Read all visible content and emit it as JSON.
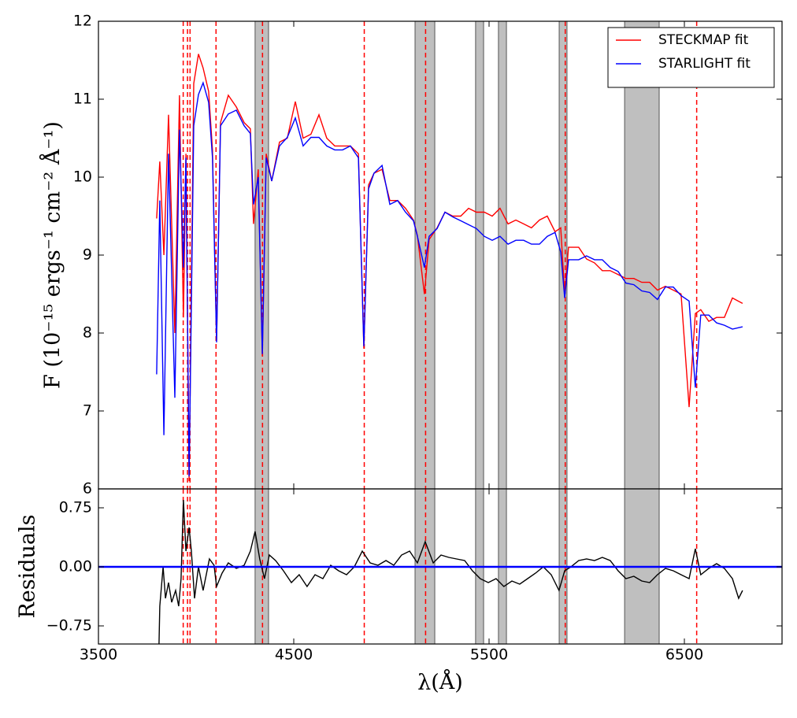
{
  "chart_data": [
    {
      "type": "line",
      "ylabel": "F (10⁻¹⁵ ergs⁻¹ cm⁻² Å⁻¹)",
      "xlim": [
        3500,
        7000
      ],
      "xticks": [
        3500,
        4500,
        5500,
        6500
      ],
      "ylim": [
        6,
        12
      ],
      "yticks": [
        6,
        7,
        8,
        9,
        10,
        11,
        12
      ],
      "legend": "upper right",
      "x": [
        3798,
        3814,
        3835,
        3859,
        3891,
        3915,
        3935,
        3948,
        3964,
        3988,
        4012,
        4036,
        4064,
        4084,
        4105,
        4125,
        4165,
        4206,
        4246,
        4278,
        4294,
        4318,
        4339,
        4359,
        4387,
        4427,
        4467,
        4508,
        4548,
        4588,
        4629,
        4669,
        4710,
        4750,
        4790,
        4831,
        4859,
        4883,
        4911,
        4952,
        4992,
        5032,
        5072,
        5113,
        5133,
        5169,
        5193,
        5234,
        5274,
        5314,
        5355,
        5395,
        5435,
        5476,
        5516,
        5556,
        5597,
        5637,
        5677,
        5717,
        5758,
        5798,
        5838,
        5867,
        5887,
        5907,
        5959,
        5999,
        6040,
        6080,
        6120,
        6161,
        6201,
        6241,
        6282,
        6322,
        6362,
        6403,
        6443,
        6483,
        6524,
        6556,
        6584,
        6625,
        6665,
        6705,
        6746,
        6798
      ],
      "series": [
        {
          "name": "STECKMAP fit",
          "color": "#ff0000",
          "values": [
            9.47,
            10.2,
            9.0,
            10.8,
            8.0,
            11.05,
            8.2,
            10.3,
            6.1,
            11.2,
            11.58,
            11.4,
            11.1,
            10.35,
            7.9,
            10.7,
            11.05,
            10.9,
            10.7,
            10.62,
            9.4,
            10.1,
            7.7,
            10.3,
            9.95,
            10.45,
            10.5,
            10.97,
            10.5,
            10.55,
            10.8,
            10.5,
            10.4,
            10.4,
            10.4,
            10.3,
            7.8,
            9.9,
            10.05,
            10.1,
            9.7,
            9.7,
            9.6,
            9.45,
            9.25,
            8.5,
            9.2,
            9.35,
            9.55,
            9.5,
            9.5,
            9.6,
            9.55,
            9.55,
            9.5,
            9.6,
            9.4,
            9.45,
            9.4,
            9.35,
            9.45,
            9.5,
            9.3,
            9.35,
            8.5,
            9.1,
            9.1,
            8.95,
            8.9,
            8.8,
            8.8,
            8.75,
            8.7,
            8.7,
            8.65,
            8.65,
            8.55,
            8.6,
            8.55,
            8.5,
            7.05,
            8.25,
            8.3,
            8.15,
            8.2,
            8.2,
            8.45,
            8.38
          ]
        },
        {
          "name": "STARLIGHT fit",
          "color": "#0000ff",
          "values": [
            7.47,
            9.7,
            6.69,
            10.3,
            7.17,
            10.61,
            8.84,
            10.25,
            6.16,
            10.66,
            11.06,
            11.21,
            10.96,
            10.25,
            7.88,
            10.66,
            10.81,
            10.86,
            10.66,
            10.56,
            9.65,
            10.0,
            7.73,
            10.25,
            9.95,
            10.4,
            10.51,
            10.76,
            10.4,
            10.51,
            10.51,
            10.4,
            10.35,
            10.35,
            10.4,
            10.25,
            7.83,
            9.85,
            10.05,
            10.15,
            9.65,
            9.7,
            9.55,
            9.44,
            9.24,
            8.84,
            9.24,
            9.34,
            9.55,
            9.49,
            9.44,
            9.39,
            9.34,
            9.24,
            9.19,
            9.24,
            9.14,
            9.19,
            9.19,
            9.14,
            9.14,
            9.24,
            9.29,
            9.04,
            8.45,
            8.94,
            8.94,
            8.99,
            8.94,
            8.94,
            8.84,
            8.79,
            8.64,
            8.62,
            8.54,
            8.52,
            8.43,
            8.59,
            8.59,
            8.48,
            8.41,
            7.3,
            8.23,
            8.23,
            8.13,
            8.1,
            8.05,
            8.08
          ]
        }
      ],
      "vlines": [
        3934,
        3956,
        3969,
        4102,
        4340,
        4861,
        5175,
        5890,
        6563
      ],
      "vline_color": "#ff0000",
      "bands": [
        [
          4302,
          4371
        ],
        [
          5121,
          5222
        ],
        [
          5431,
          5472
        ],
        [
          5548,
          5589
        ],
        [
          5859,
          5899
        ],
        [
          6194,
          6371
        ]
      ],
      "band_color": "#bfbfbf"
    },
    {
      "type": "line",
      "ylabel": "Residuals",
      "xlabel": "λ(Å)",
      "xlim": [
        3500,
        7000
      ],
      "xticks": [
        3500,
        4500,
        5500,
        6500
      ],
      "ylim": [
        -0.98,
        0.99
      ],
      "yticks": [
        {
          "value": -0.75,
          "label": "−0.75"
        },
        {
          "value": 0,
          "label": "0.00"
        },
        {
          "value": 0.75,
          "label": "0.75"
        }
      ],
      "x": [
        3810,
        3814,
        3831,
        3843,
        3859,
        3875,
        3895,
        3911,
        3923,
        3935,
        3948,
        3964,
        3976,
        3992,
        4012,
        4036,
        4068,
        4092,
        4105,
        4133,
        4165,
        4206,
        4246,
        4278,
        4302,
        4326,
        4350,
        4375,
        4407,
        4447,
        4488,
        4528,
        4568,
        4609,
        4649,
        4689,
        4730,
        4770,
        4810,
        4851,
        4891,
        4931,
        4972,
        5012,
        5052,
        5093,
        5133,
        5173,
        5214,
        5254,
        5294,
        5334,
        5375,
        5415,
        5455,
        5496,
        5536,
        5576,
        5617,
        5657,
        5697,
        5738,
        5778,
        5818,
        5858,
        5887,
        5919,
        5959,
        5999,
        6040,
        6080,
        6120,
        6161,
        6201,
        6241,
        6282,
        6322,
        6362,
        6403,
        6443,
        6483,
        6524,
        6556,
        6584,
        6625,
        6665,
        6705,
        6746,
        6778,
        6798
      ],
      "series": [
        {
          "color": "#000000",
          "values": [
            -0.98,
            -0.5,
            0.0,
            -0.4,
            -0.2,
            -0.45,
            -0.3,
            -0.5,
            -0.15,
            0.85,
            0.2,
            0.5,
            0.2,
            -0.4,
            0.0,
            -0.3,
            0.1,
            0.02,
            -0.25,
            -0.08,
            0.05,
            -0.02,
            0.02,
            0.2,
            0.45,
            0.1,
            -0.15,
            0.15,
            0.08,
            -0.05,
            -0.2,
            -0.1,
            -0.25,
            -0.1,
            -0.15,
            0.02,
            -0.05,
            -0.1,
            0.0,
            0.2,
            0.05,
            0.02,
            0.08,
            0.02,
            0.15,
            0.2,
            0.05,
            0.32,
            0.05,
            0.15,
            0.12,
            0.1,
            0.08,
            -0.05,
            -0.15,
            -0.2,
            -0.15,
            -0.25,
            -0.18,
            -0.22,
            -0.15,
            -0.08,
            0.0,
            -0.1,
            -0.3,
            -0.05,
            0.0,
            0.08,
            0.1,
            0.08,
            0.12,
            0.08,
            -0.05,
            -0.15,
            -0.12,
            -0.18,
            -0.2,
            -0.1,
            -0.02,
            -0.05,
            -0.1,
            -0.15,
            0.23,
            -0.1,
            -0.02,
            0.04,
            -0.02,
            -0.15,
            -0.4,
            -0.3
          ]
        }
      ],
      "hline": {
        "value": 0,
        "color": "#0000ff"
      },
      "vlines": [
        3934,
        3956,
        3969,
        4102,
        4340,
        4861,
        5175,
        5890,
        6563
      ],
      "vline_color": "#ff0000",
      "bands": [
        [
          4302,
          4371
        ],
        [
          5121,
          5222
        ],
        [
          5431,
          5472
        ],
        [
          5548,
          5589
        ],
        [
          5859,
          5899
        ],
        [
          6194,
          6371
        ]
      ],
      "band_color": "#bfbfbf"
    }
  ]
}
